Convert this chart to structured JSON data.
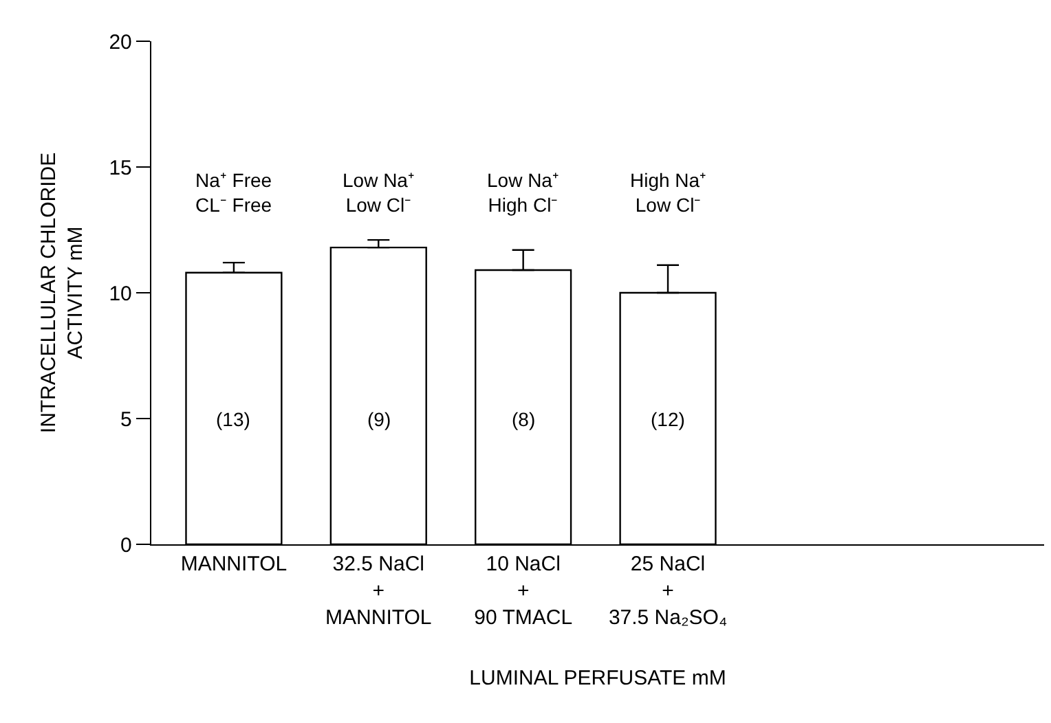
{
  "chart_data": {
    "type": "bar",
    "categories": [
      "MANNITOL",
      "32.5 NaCl\n+\nMANNITOL",
      "10 NaCl\n+\n90 TMACL",
      "25 NaCl\n+\n37.5 Na₂SO₄"
    ],
    "values": [
      10.8,
      11.8,
      10.9,
      10.0
    ],
    "errors": [
      [
        10.8,
        11.2
      ],
      [
        11.8,
        12.1
      ],
      [
        10.9,
        11.7
      ],
      [
        10.0,
        11.1
      ]
    ],
    "color": "#ffffff",
    "xlabel": "LUMINAL PERFUSATE mM",
    "ylabel": "INTRACELLULAR CHLORIDE\nACTIVITY mM",
    "ylim": [
      0,
      20
    ],
    "yticks": [
      0,
      5,
      10,
      15,
      20
    ],
    "annotations": [
      "Na⁺ Free\nCL⁻ Free",
      "Low Na⁺\nLow Cl⁻",
      "Low Na⁺\nHigh Cl⁻",
      "High Na⁺\nLow Cl⁻",
      "(13)",
      "(9)",
      "(8)",
      "(12)"
    ]
  }
}
